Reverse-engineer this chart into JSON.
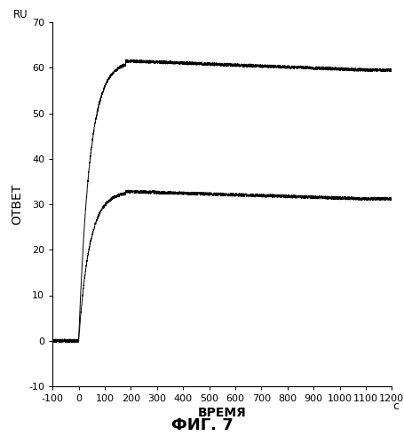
{
  "title_bottom": "ФИГ. 7",
  "ylabel": "ОТВЕТ",
  "xlabel": "ВРЕМЯ",
  "xlabel_unit": "с",
  "ylabel_top_label": "RU",
  "xlim": [
    -100,
    1200
  ],
  "ylim": [
    -10,
    70
  ],
  "xticks": [
    -100,
    0,
    100,
    200,
    300,
    400,
    500,
    600,
    700,
    800,
    900,
    1000,
    1100,
    1200
  ],
  "yticks": [
    -10,
    0,
    10,
    20,
    30,
    40,
    50,
    60,
    70
  ],
  "curve1_plateau": 61.5,
  "curve2_plateau": 32.8,
  "curve1_end": 59.5,
  "curve2_end": 31.2,
  "rise_start": 0,
  "rise_end": 180,
  "tau_rise": 42,
  "noise_amplitude": 0.35,
  "line_color": "#000000",
  "background_color": "#ffffff",
  "font_size_labels": 10,
  "font_size_title": 13,
  "font_size_ticks": 8
}
